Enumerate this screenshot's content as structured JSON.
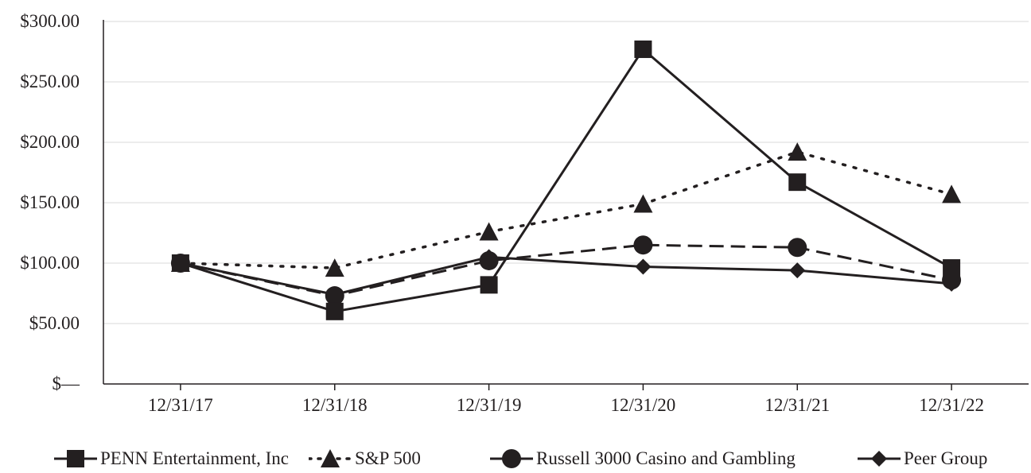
{
  "chart_data": {
    "type": "line",
    "title": "",
    "xlabel": "",
    "ylabel": "",
    "categories": [
      "12/31/17",
      "12/31/18",
      "12/31/19",
      "12/31/20",
      "12/31/21",
      "12/31/22"
    ],
    "ylim": [
      0,
      300
    ],
    "y_ticks": [
      0,
      50,
      100,
      150,
      200,
      250,
      300
    ],
    "y_tick_labels": [
      "$—",
      "$50.00",
      "$100.00",
      "$150.00",
      "$200.00",
      "$250.00",
      "$300.00"
    ],
    "grid": true,
    "legend_position": "bottom",
    "series": [
      {
        "name": "PENN Entertainment, Inc",
        "values": [
          100,
          60,
          82,
          277,
          167,
          96
        ],
        "marker": "square",
        "line_style": "solid"
      },
      {
        "name": "S&P 500",
        "values": [
          100,
          96,
          126,
          149,
          192,
          157
        ],
        "marker": "triangle",
        "line_style": "dotted"
      },
      {
        "name": "Russell 3000 Casino and Gambling",
        "values": [
          100,
          73,
          102,
          115,
          113,
          86
        ],
        "marker": "circle",
        "line_style": "dashed"
      },
      {
        "name": "Peer Group",
        "values": [
          100,
          74,
          105,
          97,
          94,
          83
        ],
        "marker": "diamond",
        "line_style": "solid"
      }
    ],
    "colors": {
      "ink": "#231f20",
      "grid": "#d9d9d9"
    }
  }
}
